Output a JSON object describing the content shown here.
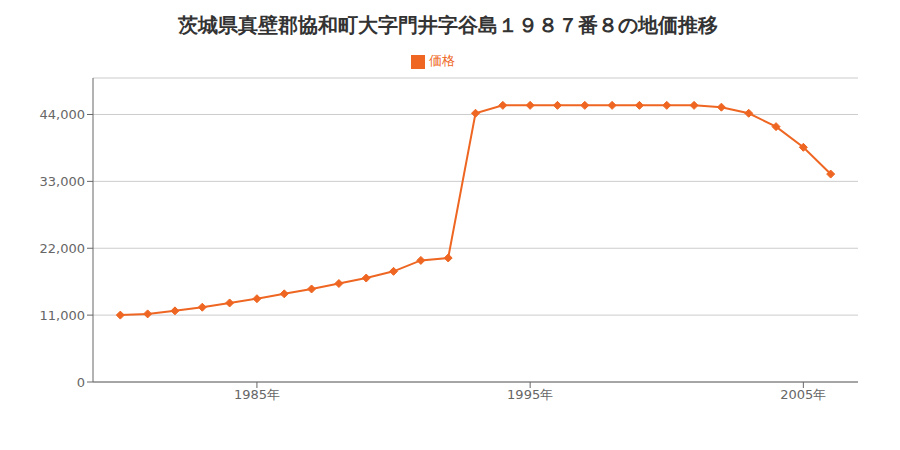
{
  "chart_data": {
    "type": "line",
    "title": "茨城県真壁郡協和町大字門井字谷島１９８７番８の地価推移",
    "x": [
      1980,
      1981,
      1982,
      1983,
      1984,
      1985,
      1986,
      1987,
      1988,
      1989,
      1990,
      1991,
      1992,
      1993,
      1994,
      1995,
      1996,
      1997,
      1998,
      1999,
      2000,
      2001,
      2002,
      2003,
      2004,
      2005,
      2006
    ],
    "series": [
      {
        "name": "価格",
        "color": "#ee6622",
        "marker": "diamond",
        "values": [
          11000,
          11200,
          11700,
          12300,
          13000,
          13700,
          14500,
          15300,
          16200,
          17100,
          18200,
          20000,
          20400,
          44200,
          45500,
          45500,
          45500,
          45500,
          45500,
          45500,
          45500,
          45500,
          45200,
          44200,
          42000,
          38600,
          34200
        ]
      }
    ],
    "xlim": [
      1979,
      2007
    ],
    "xticks": [
      {
        "value": 1985,
        "label": "1985年"
      },
      {
        "value": 1995,
        "label": "1995年"
      },
      {
        "value": 2005,
        "label": "2005年"
      }
    ],
    "ylim": [
      0,
      50000
    ],
    "yticks": [
      0,
      {
        "value": 11000,
        "label": "11,000"
      },
      {
        "value": 22000,
        "label": "22,000"
      },
      {
        "value": 33000,
        "label": "33,000"
      },
      {
        "value": 44000,
        "label": "44,000"
      }
    ],
    "grid": true,
    "legend": "top"
  }
}
